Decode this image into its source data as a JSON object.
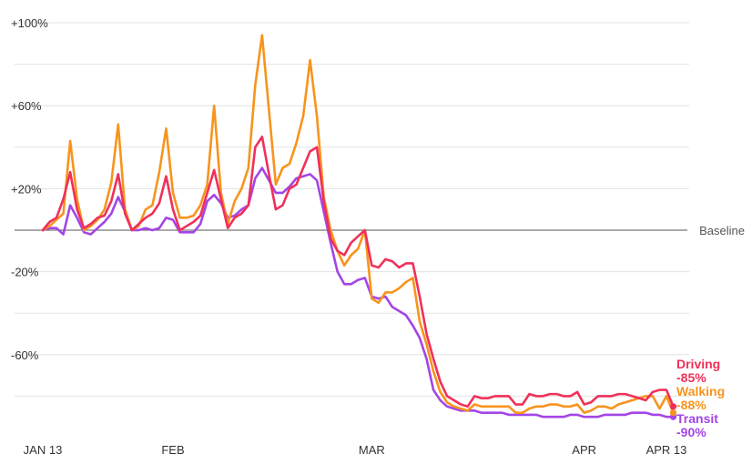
{
  "chart_data": {
    "type": "line",
    "title": "",
    "xlabel": "",
    "ylabel": "",
    "ylim": [
      -100,
      100
    ],
    "grid": true,
    "y_ticks": [
      {
        "value": 100,
        "label": "+100%"
      },
      {
        "value": 60,
        "label": "+60%"
      },
      {
        "value": 20,
        "label": "+20%"
      },
      {
        "value": -20,
        "label": "-20%"
      },
      {
        "value": -60,
        "label": "-60%"
      }
    ],
    "gridlines": [
      80,
      40,
      0,
      -40,
      -80
    ],
    "baseline": {
      "value": 0,
      "label": "Baseline"
    },
    "x_ticks": [
      {
        "index": 0,
        "label": "JAN 13"
      },
      {
        "index": 19,
        "label": "FEB"
      },
      {
        "index": 48,
        "label": "MAR"
      },
      {
        "index": 79,
        "label": "APR"
      },
      {
        "index": 91,
        "label": "APR 13"
      }
    ],
    "x_days": 92,
    "series": [
      {
        "name": "Driving",
        "value_label": "-85%",
        "color": "#f0305a",
        "values": [
          0,
          4,
          6,
          15,
          28,
          10,
          1,
          3,
          6,
          7,
          14,
          27,
          8,
          0,
          3,
          6,
          8,
          13,
          26,
          10,
          0,
          2,
          4,
          7,
          18,
          29,
          15,
          1,
          6,
          8,
          12,
          40,
          45,
          27,
          10,
          12,
          20,
          22,
          30,
          38,
          40,
          14,
          -4,
          -10,
          -12,
          -6,
          -3,
          0,
          -17,
          -18,
          -14,
          -15,
          -18,
          -16,
          -16,
          -32,
          -50,
          -62,
          -73,
          -80,
          -82,
          -84,
          -85,
          -80,
          -81,
          -81,
          -80,
          -80,
          -80,
          -84,
          -84,
          -79,
          -80,
          -80,
          -79,
          -79,
          -80,
          -80,
          -78,
          -84,
          -83,
          -80,
          -80,
          -80,
          -79,
          -79,
          -80,
          -81,
          -82,
          -78,
          -77,
          -77,
          -85
        ]
      },
      {
        "name": "Walking",
        "value_label": "-88%",
        "color": "#f7941d",
        "values": [
          0,
          2,
          5,
          8,
          43,
          15,
          0,
          2,
          5,
          10,
          23,
          51,
          10,
          0,
          2,
          10,
          12,
          28,
          49,
          18,
          6,
          6,
          7,
          12,
          22,
          60,
          18,
          3,
          14,
          20,
          30,
          70,
          94,
          58,
          22,
          30,
          32,
          42,
          55,
          82,
          55,
          16,
          0,
          -10,
          -17,
          -12,
          -9,
          0,
          -33,
          -35,
          -30,
          -30,
          -28,
          -25,
          -23,
          -44,
          -55,
          -68,
          -78,
          -83,
          -85,
          -86,
          -87,
          -84,
          -85,
          -85,
          -85,
          -85,
          -85,
          -88,
          -88,
          -86,
          -85,
          -85,
          -84,
          -84,
          -85,
          -85,
          -84,
          -88,
          -87,
          -85,
          -85,
          -86,
          -84,
          -83,
          -82,
          -81,
          -80,
          -80,
          -86,
          -80,
          -88
        ]
      },
      {
        "name": "Transit",
        "value_label": "-90%",
        "color": "#a445e6",
        "values": [
          0,
          1,
          1,
          -2,
          12,
          6,
          -1,
          -2,
          1,
          4,
          8,
          16,
          9,
          0,
          0,
          1,
          0,
          1,
          6,
          5,
          -1,
          -1,
          -1,
          3,
          14,
          17,
          13,
          6,
          7,
          10,
          12,
          25,
          30,
          24,
          18,
          18,
          21,
          25,
          26,
          27,
          24,
          9,
          -6,
          -20,
          -26,
          -26,
          -24,
          -23,
          -32,
          -33,
          -32,
          -37,
          -39,
          -41,
          -46,
          -52,
          -62,
          -77,
          -82,
          -85,
          -86,
          -87,
          -87,
          -87,
          -88,
          -88,
          -88,
          -88,
          -89,
          -89,
          -89,
          -89,
          -89,
          -90,
          -90,
          -90,
          -90,
          -89,
          -89,
          -90,
          -90,
          -90,
          -89,
          -89,
          -89,
          -89,
          -88,
          -88,
          -88,
          -89,
          -89,
          -90,
          -90
        ]
      }
    ],
    "legend": "right-end-labels"
  }
}
